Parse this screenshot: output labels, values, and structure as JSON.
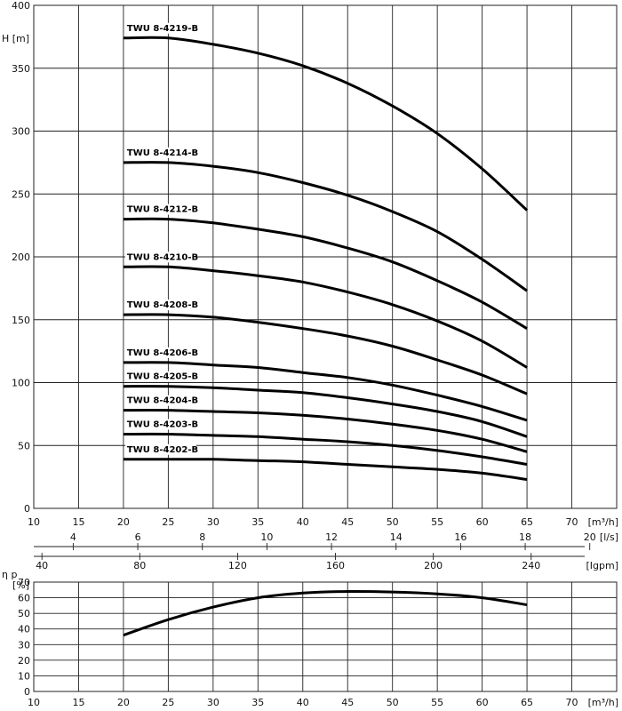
{
  "chart_data": [
    {
      "type": "line",
      "ylabel": "H [m]",
      "xlabel": "[m³/h]",
      "xlim": [
        10,
        75
      ],
      "ylim": [
        0,
        400
      ],
      "grid": true,
      "x_ticks": [
        "10",
        "15",
        "20",
        "25",
        "30",
        "35",
        "40",
        "45",
        "50",
        "55",
        "60",
        "65",
        "70"
      ],
      "y_ticks": [
        "0",
        "50",
        "100",
        "150",
        "200",
        "250",
        "300",
        "350",
        "400"
      ],
      "secondary_axes": [
        {
          "unit": "[l/s]",
          "ticks": [
            {
              "value": 4,
              "label": "4"
            },
            {
              "value": 6,
              "label": "6"
            },
            {
              "value": 8,
              "label": "8"
            },
            {
              "value": 10,
              "label": "10"
            },
            {
              "value": 12,
              "label": "12"
            },
            {
              "value": 14,
              "label": "14"
            },
            {
              "value": 16,
              "label": "16"
            },
            {
              "value": 18,
              "label": "18"
            },
            {
              "value": 20,
              "label": "20"
            }
          ],
          "factor_to_m3h": 3.6
        },
        {
          "unit": "[Igpm]",
          "ticks": [
            {
              "value": 40,
              "label": "40"
            },
            {
              "value": 80,
              "label": "80"
            },
            {
              "value": 120,
              "label": "120"
            },
            {
              "value": 160,
              "label": "160"
            },
            {
              "value": 200,
              "label": "200"
            },
            {
              "value": 240,
              "label": "240"
            }
          ],
          "factor_to_m3h": 0.27277
        }
      ],
      "series": [
        {
          "name": "TWU 8-4219-B",
          "x": [
            20,
            25,
            30,
            35,
            40,
            45,
            50,
            55,
            60,
            65
          ],
          "y": [
            374,
            374,
            369,
            362,
            352,
            338,
            320,
            298,
            270,
            237
          ]
        },
        {
          "name": "TWU 8-4214-B",
          "x": [
            20,
            25,
            30,
            35,
            40,
            45,
            50,
            55,
            60,
            65
          ],
          "y": [
            275,
            275,
            272,
            267,
            259,
            249,
            236,
            220,
            198,
            173
          ]
        },
        {
          "name": "TWU 8-4212-B",
          "x": [
            20,
            25,
            30,
            35,
            40,
            45,
            50,
            55,
            60,
            65
          ],
          "y": [
            230,
            230,
            227,
            222,
            216,
            207,
            196,
            181,
            164,
            143
          ]
        },
        {
          "name": "TWU 8-4210-B",
          "x": [
            20,
            25,
            30,
            35,
            40,
            45,
            50,
            55,
            60,
            65
          ],
          "y": [
            192,
            192,
            189,
            185,
            180,
            172,
            162,
            149,
            133,
            112
          ]
        },
        {
          "name": "TWU 8-4208-B",
          "x": [
            20,
            25,
            30,
            35,
            40,
            45,
            50,
            55,
            60,
            65
          ],
          "y": [
            154,
            154,
            152,
            148,
            143,
            137,
            129,
            118,
            106,
            91
          ]
        },
        {
          "name": "TWU 8-4206-B",
          "x": [
            20,
            25,
            30,
            35,
            40,
            45,
            50,
            55,
            60,
            65
          ],
          "y": [
            116,
            116,
            114,
            112,
            108,
            104,
            98,
            90,
            81,
            70
          ]
        },
        {
          "name": "TWU 8-4205-B",
          "x": [
            20,
            25,
            30,
            35,
            40,
            45,
            50,
            55,
            60,
            65
          ],
          "y": [
            97,
            97,
            96,
            94,
            92,
            88,
            83,
            77,
            69,
            57
          ]
        },
        {
          "name": "TWU 8-4204-B",
          "x": [
            20,
            25,
            30,
            35,
            40,
            45,
            50,
            55,
            60,
            65
          ],
          "y": [
            78,
            78,
            77,
            76,
            74,
            71,
            67,
            62,
            55,
            45
          ]
        },
        {
          "name": "TWU 8-4203-B",
          "x": [
            20,
            25,
            30,
            35,
            40,
            45,
            50,
            55,
            60,
            65
          ],
          "y": [
            59,
            59,
            58,
            57,
            55,
            53,
            50,
            46,
            41,
            35
          ]
        },
        {
          "name": "TWU 8-4202-B",
          "x": [
            20,
            25,
            30,
            35,
            40,
            45,
            50,
            55,
            60,
            65
          ],
          "y": [
            39,
            39,
            39,
            38,
            37,
            35,
            33,
            31,
            28,
            23
          ]
        }
      ]
    },
    {
      "type": "line",
      "ylabel": "η p",
      "yunit": "[%]",
      "xlabel": "[m³/h]",
      "xlim": [
        10,
        75
      ],
      "ylim": [
        0,
        70
      ],
      "grid": true,
      "x_ticks": [
        "10",
        "15",
        "20",
        "25",
        "30",
        "35",
        "40",
        "45",
        "50",
        "55",
        "60",
        "65",
        "70"
      ],
      "y_ticks": [
        "0",
        "10",
        "20",
        "30",
        "40",
        "50",
        "60",
        "70"
      ],
      "series": [
        {
          "x": [
            20,
            25,
            30,
            35,
            40,
            45,
            50,
            55,
            60,
            65
          ],
          "y": [
            36,
            46,
            54,
            60,
            63,
            64,
            63.7,
            62.5,
            60,
            55.5
          ]
        }
      ]
    }
  ]
}
